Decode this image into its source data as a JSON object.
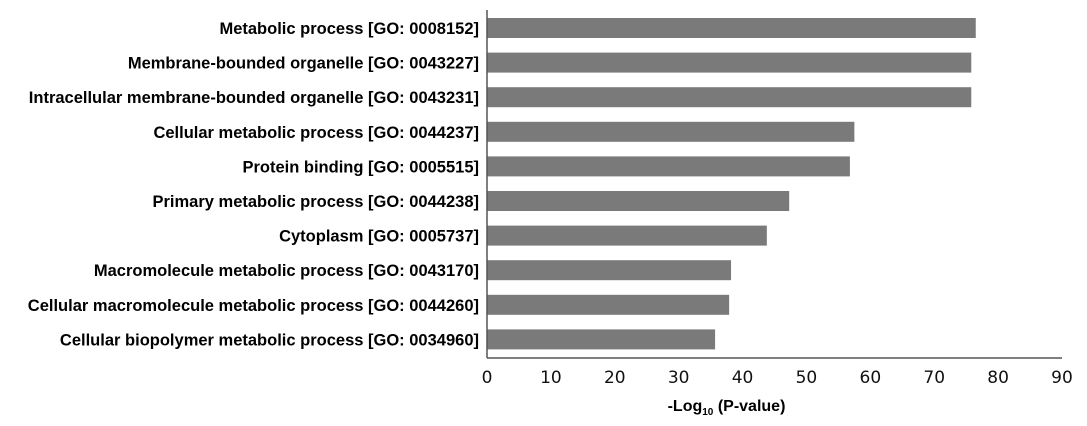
{
  "chart_data": {
    "type": "bar",
    "orientation": "horizontal",
    "categories": [
      "Metabolic process [GO: 0008152]",
      "Membrane-bounded organelle [GO: 0043227]",
      "Intracellular membrane-bounded organelle [GO: 0043231]",
      "Cellular metabolic process [GO: 0044237]",
      "Protein binding [GO: 0005515]",
      "Primary metabolic process [GO: 0044238]",
      "Cytoplasm [GO: 0005737]",
      "Macromolecule metabolic process [GO: 0043170]",
      "Cellular macromolecule metabolic process [GO: 0044260]",
      "Cellular biopolymer metabolic process [GO: 0034960]"
    ],
    "values": [
      76.5,
      75.8,
      75.8,
      57.5,
      56.8,
      47.3,
      43.8,
      38.2,
      37.9,
      35.7
    ],
    "xlabel_main": "-Log",
    "xlabel_sub": "10",
    "xlabel_rest": " (P-value)",
    "xlim": [
      0,
      90
    ],
    "xticks": [
      "0",
      "10",
      "20",
      "30",
      "40",
      "50",
      "60",
      "70",
      "80",
      "90"
    ],
    "bar_color": "#7a7a7a",
    "grid": false,
    "legend": "none"
  }
}
